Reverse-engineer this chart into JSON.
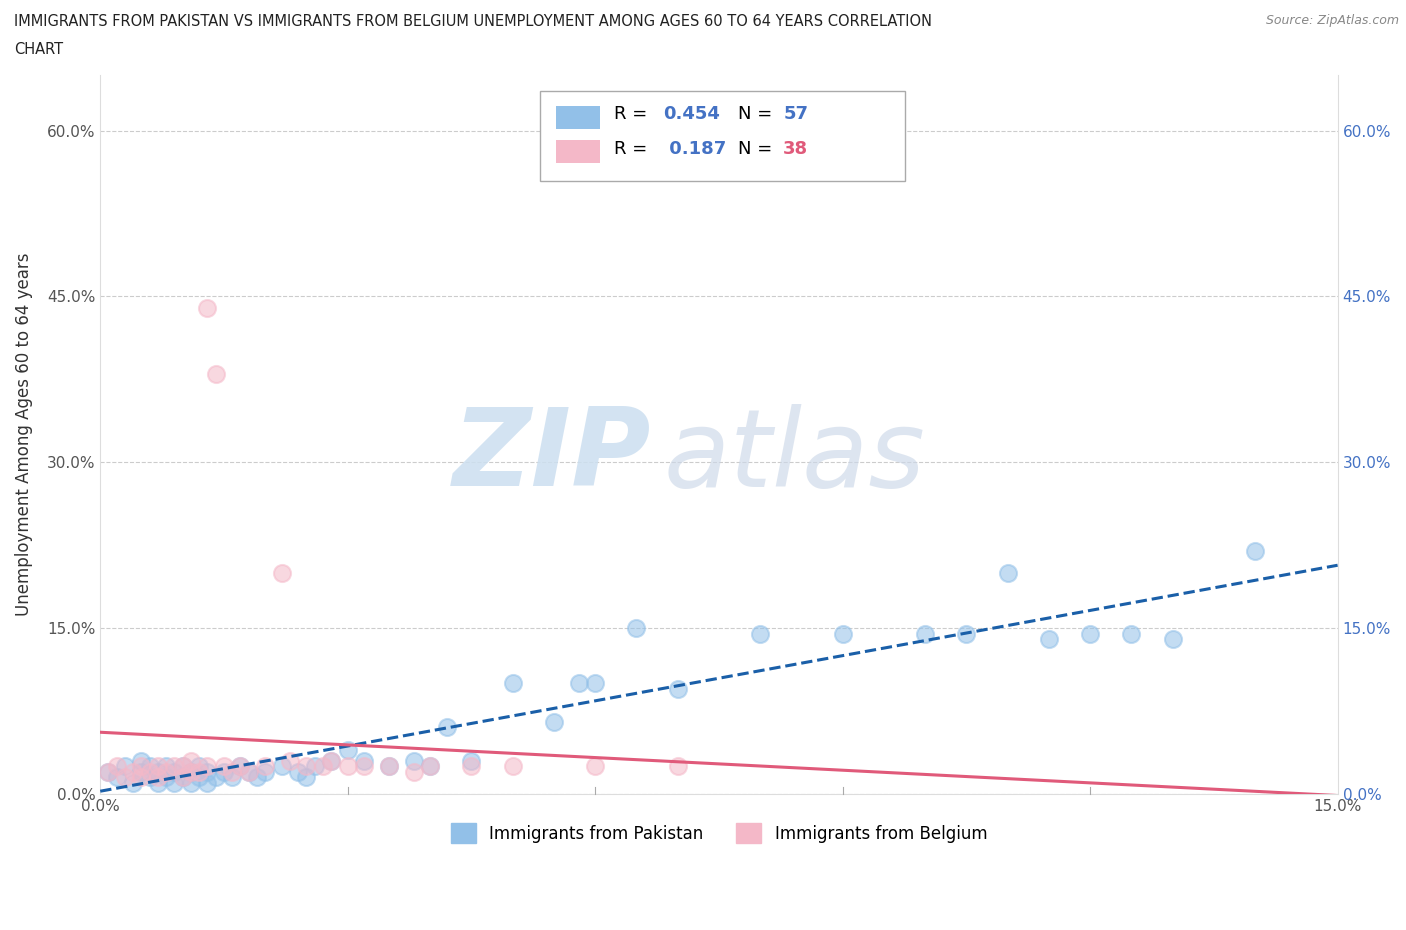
{
  "title_line1": "IMMIGRANTS FROM PAKISTAN VS IMMIGRANTS FROM BELGIUM UNEMPLOYMENT AMONG AGES 60 TO 64 YEARS CORRELATION",
  "title_line2": "CHART",
  "source_text": "Source: ZipAtlas.com",
  "ylabel": "Unemployment Among Ages 60 to 64 years",
  "xlim": [
    0.0,
    0.15
  ],
  "ylim": [
    0.0,
    0.65
  ],
  "yticks": [
    0.0,
    0.15,
    0.3,
    0.45,
    0.6
  ],
  "ytick_labels": [
    "0.0%",
    "15.0%",
    "30.0%",
    "45.0%",
    "60.0%"
  ],
  "pakistan_color": "#92c0e8",
  "belgium_color": "#f4b8c8",
  "pakistan_line_color": "#1a5fa8",
  "belgium_line_color": "#e05a7a",
  "pakistan_r": "0.454",
  "pakistan_n": "57",
  "belgium_r": "0.187",
  "belgium_n": "38",
  "watermark_zip_color": "#ccdff0",
  "watermark_atlas_color": "#ccd8e8",
  "pakistan_x": [
    0.001,
    0.002,
    0.003,
    0.004,
    0.005,
    0.005,
    0.006,
    0.006,
    0.007,
    0.007,
    0.008,
    0.008,
    0.009,
    0.009,
    0.01,
    0.01,
    0.011,
    0.011,
    0.012,
    0.012,
    0.013,
    0.013,
    0.014,
    0.015,
    0.016,
    0.017,
    0.018,
    0.019,
    0.02,
    0.022,
    0.024,
    0.025,
    0.026,
    0.028,
    0.03,
    0.032,
    0.035,
    0.038,
    0.04,
    0.042,
    0.045,
    0.05,
    0.055,
    0.058,
    0.06,
    0.065,
    0.07,
    0.08,
    0.09,
    0.1,
    0.105,
    0.11,
    0.115,
    0.12,
    0.125,
    0.13,
    0.14
  ],
  "pakistan_y": [
    0.02,
    0.015,
    0.025,
    0.01,
    0.02,
    0.03,
    0.015,
    0.025,
    0.01,
    0.02,
    0.015,
    0.025,
    0.01,
    0.02,
    0.015,
    0.025,
    0.01,
    0.02,
    0.015,
    0.025,
    0.01,
    0.02,
    0.015,
    0.02,
    0.015,
    0.025,
    0.02,
    0.015,
    0.02,
    0.025,
    0.02,
    0.015,
    0.025,
    0.03,
    0.04,
    0.03,
    0.025,
    0.03,
    0.025,
    0.06,
    0.03,
    0.1,
    0.065,
    0.1,
    0.1,
    0.15,
    0.095,
    0.145,
    0.145,
    0.145,
    0.145,
    0.2,
    0.14,
    0.145,
    0.145,
    0.14,
    0.22
  ],
  "belgium_x": [
    0.001,
    0.002,
    0.003,
    0.004,
    0.005,
    0.005,
    0.006,
    0.007,
    0.007,
    0.008,
    0.009,
    0.01,
    0.01,
    0.011,
    0.011,
    0.012,
    0.013,
    0.013,
    0.014,
    0.015,
    0.016,
    0.017,
    0.018,
    0.02,
    0.022,
    0.023,
    0.025,
    0.027,
    0.028,
    0.03,
    0.032,
    0.035,
    0.038,
    0.04,
    0.045,
    0.05,
    0.06,
    0.07
  ],
  "belgium_y": [
    0.02,
    0.025,
    0.015,
    0.02,
    0.025,
    0.015,
    0.02,
    0.025,
    0.015,
    0.02,
    0.025,
    0.015,
    0.025,
    0.02,
    0.03,
    0.02,
    0.44,
    0.025,
    0.38,
    0.025,
    0.02,
    0.025,
    0.02,
    0.025,
    0.2,
    0.03,
    0.025,
    0.025,
    0.03,
    0.025,
    0.025,
    0.025,
    0.02,
    0.025,
    0.025,
    0.025,
    0.025,
    0.025
  ]
}
